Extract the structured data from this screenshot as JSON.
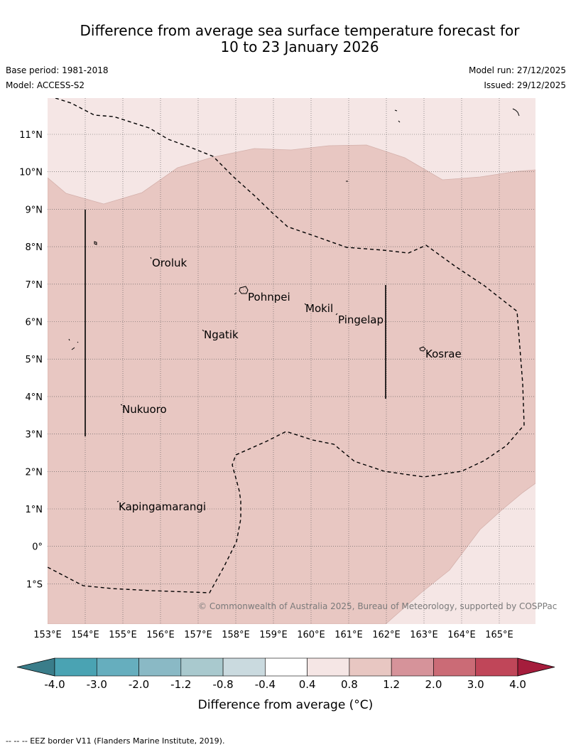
{
  "title_line1": "Difference from average sea surface temperature forecast for",
  "title_line2": "10 to 23 January 2026",
  "base_period": "Base period: 1981-2018",
  "model": "Model: ACCESS-S2",
  "model_run": "Model run: 27/12/2025",
  "issued": "Issued: 29/12/2025",
  "map": {
    "lon_labels": [
      "153°E",
      "154°E",
      "155°E",
      "156°E",
      "157°E",
      "158°E",
      "159°E",
      "160°E",
      "161°E",
      "162°E",
      "163°E",
      "164°E",
      "165°E"
    ],
    "lat_labels": [
      "11°N",
      "10°N",
      "9°N",
      "8°N",
      "7°N",
      "6°N",
      "5°N",
      "4°N",
      "3°N",
      "2°N",
      "1°N",
      "0°",
      "1°S"
    ],
    "places": [
      "Oroluk",
      "Pohnpei",
      "Mokil",
      "Pingelap",
      "Ngatik",
      "Kosrae",
      "Nukuoro",
      "Kapingamarangi"
    ],
    "copyright": "© Commonwealth of Australia 2025, Bureau of Meteorology, supported by COSPPac"
  },
  "colorbar": {
    "tick_labels": [
      "-4.0",
      "-3.0",
      "-2.0",
      "-1.2",
      "-0.8",
      "-0.4",
      "0.4",
      "0.8",
      "1.2",
      "2.0",
      "3.0",
      "4.0"
    ],
    "colors": [
      "#3a7d8a",
      "#4aa3b3",
      "#66aebe",
      "#8ab9c5",
      "#a9c9ce",
      "#cadadf",
      "#ffffff",
      "#f5e6e5",
      "#e8c7c2",
      "#d6939a",
      "#cb6b76",
      "#c04659",
      "#a51d3c"
    ],
    "label": "Difference from average (°C)"
  },
  "footer": "-- --  -- EEZ border V11 (Flanders Marine Institute, 2019)."
}
